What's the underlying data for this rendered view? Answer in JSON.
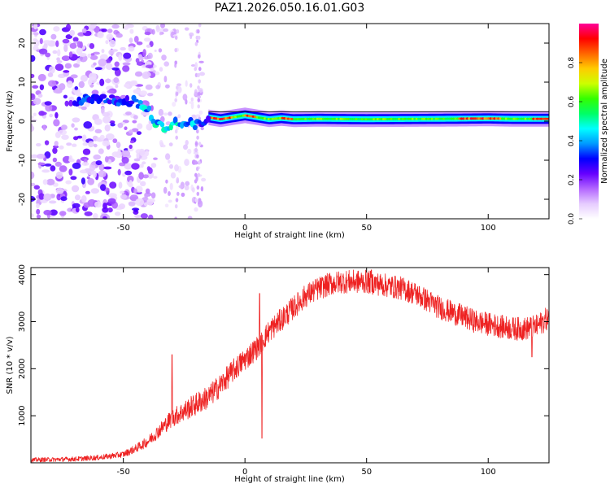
{
  "figure_title": "PAZ1.2026.050.16.01.G03",
  "chart_data": [
    {
      "type": "heatmap",
      "title": "PAZ1.2026.050.16.01.G03",
      "xlabel": "Height of straight line (km)",
      "ylabel": "Frequency (Hz)",
      "xlim": [
        -88,
        125
      ],
      "ylim": [
        -25,
        25
      ],
      "xticks": [
        -50,
        0,
        50,
        100
      ],
      "yticks": [
        -20,
        -10,
        0,
        10,
        20
      ],
      "xtick_labels": [
        "-50",
        "0",
        "50",
        "100"
      ],
      "ytick_labels": [
        "-20",
        "-10",
        "0",
        "10",
        "20"
      ],
      "colorbar": {
        "label": "Normalized spectral amplitude",
        "range": [
          0.0,
          1.0
        ],
        "ticks": [
          0.0,
          0.2,
          0.4,
          0.6,
          0.8
        ],
        "tick_labels": [
          "0.0",
          "0.2",
          "0.4",
          "0.6",
          "0.8"
        ],
        "colormap": [
          "#ffffff",
          "#e6ccff",
          "#b366ff",
          "#6600ff",
          "#0000ff",
          "#0099ff",
          "#00ffff",
          "#00ff66",
          "#33ff00",
          "#ccff00",
          "#ffcc00",
          "#ff6600",
          "#ff0000",
          "#ff0099"
        ]
      },
      "features": {
        "noise_region_x": [
          -88,
          -38
        ],
        "sparse_region_x": [
          -38,
          -17
        ],
        "signal_track": {
          "x": [
            -88,
            -60,
            -50,
            -45,
            -40,
            -37,
            -33,
            -28,
            -20,
            -15,
            -10,
            -5,
            0,
            5,
            10,
            15,
            20,
            30,
            50,
            80,
            100,
            110,
            125
          ],
          "freq": [
            4,
            6,
            5,
            5,
            3,
            0,
            -2,
            0,
            -1,
            1,
            0.5,
            1,
            1.5,
            1,
            0.5,
            0.8,
            0.5,
            0.6,
            0.5,
            0.6,
            0.7,
            0.6,
            0.6
          ]
        },
        "peak_amplitude_x": [
          [
            -15,
            -5
          ],
          [
            0,
            5
          ],
          [
            15,
            20
          ],
          [
            88,
            105
          ],
          [
            118,
            125
          ]
        ],
        "signal_line_x_start": -15
      }
    },
    {
      "type": "line",
      "xlabel": "Height of straight line (km)",
      "ylabel": "SNR (10 * v/v)",
      "xlim": [
        -88,
        125
      ],
      "ylim": [
        0,
        4150
      ],
      "xticks": [
        -50,
        0,
        50,
        100
      ],
      "yticks": [
        1000,
        2000,
        3000,
        4000
      ],
      "xtick_labels": [
        "-50",
        "0",
        "50",
        "100"
      ],
      "ytick_labels": [
        "1000",
        "2000",
        "3000",
        "4000"
      ],
      "series": [
        {
          "name": "SNR",
          "color": "#ee2222",
          "x": [
            -88,
            -70,
            -60,
            -50,
            -45,
            -40,
            -35,
            -30,
            -25,
            -20,
            -15,
            -10,
            -5,
            0,
            5,
            10,
            15,
            20,
            25,
            30,
            35,
            40,
            45,
            50,
            55,
            60,
            65,
            70,
            75,
            80,
            85,
            90,
            95,
            100,
            105,
            110,
            115,
            120,
            125
          ],
          "values": [
            60,
            80,
            110,
            180,
            300,
            450,
            700,
            950,
            1100,
            1250,
            1400,
            1650,
            1950,
            2200,
            2450,
            2800,
            3050,
            3300,
            3550,
            3700,
            3800,
            3850,
            3850,
            3850,
            3800,
            3750,
            3700,
            3600,
            3450,
            3300,
            3200,
            3100,
            3000,
            2950,
            2900,
            2850,
            2850,
            2900,
            3100
          ],
          "noise_amplitude": 250,
          "spikes": [
            {
              "x": -30,
              "value": 2300
            },
            {
              "x": 6,
              "value": 3600
            },
            {
              "x": 7,
              "value": 520
            },
            {
              "x": 52,
              "value": 4100
            },
            {
              "x": 118,
              "value": 2250
            }
          ]
        }
      ]
    }
  ]
}
